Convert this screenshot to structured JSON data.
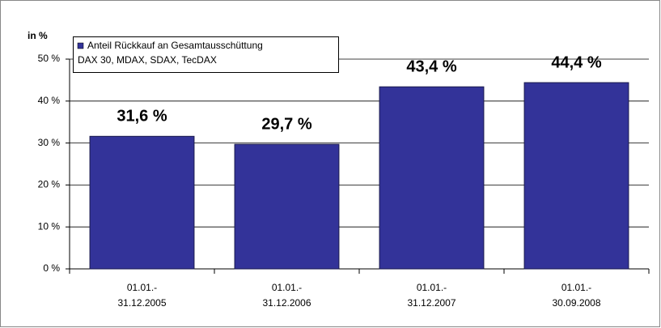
{
  "chart_data": {
    "type": "bar",
    "y_label": "in %",
    "categories": [
      [
        "01.01.-",
        "31.12.2005"
      ],
      [
        "01.01.-",
        "31.12.2006"
      ],
      [
        "01.01.-",
        "31.12.2007"
      ],
      [
        "01.01.-",
        "30.09.2008"
      ]
    ],
    "series": [
      {
        "name": [
          "Anteil Rückkauf an Gesamtausschüttung",
          "DAX 30, MDAX, SDAX, TecDAX"
        ],
        "color": "#333399",
        "values": [
          31.6,
          29.7,
          43.4,
          44.4
        ],
        "value_labels": [
          "31,6 %",
          "29,7 %",
          "43,4 %",
          "44,4 %"
        ]
      }
    ],
    "ylim": [
      0,
      50
    ],
    "yticks": [
      {
        "value": 0,
        "label": "0 %"
      },
      {
        "value": 10,
        "label": "10 %"
      },
      {
        "value": 20,
        "label": "20 %"
      },
      {
        "value": 30,
        "label": "30 %"
      },
      {
        "value": 40,
        "label": "40 %"
      },
      {
        "value": 50,
        "label": "50 %"
      }
    ],
    "grid": true,
    "legend": "upper left"
  }
}
